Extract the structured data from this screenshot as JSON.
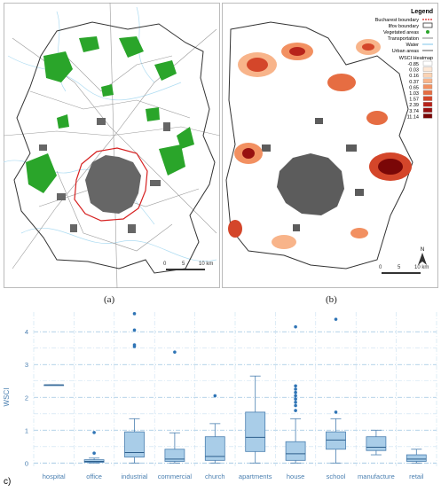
{
  "panel_a": {
    "caption": "(a)",
    "scale": {
      "ticks": [
        "0",
        "5",
        "10 km"
      ]
    }
  },
  "panel_b": {
    "caption": "(b)",
    "scale": {
      "ticks": [
        "0",
        "5",
        "10 km"
      ]
    },
    "north_label": "N",
    "legend": {
      "title": "Legend",
      "items": [
        {
          "label": "Bucharest boundary",
          "color": "#d62020",
          "style": "dashed"
        },
        {
          "label": "Ilfov boundary",
          "color": "#333333",
          "style": "box"
        },
        {
          "label": "Vegetated areas",
          "color": "#2aa52a",
          "style": "dot"
        },
        {
          "label": "Transportation",
          "color": "#888888",
          "style": "line"
        },
        {
          "label": "Water",
          "color": "#7fc4e8",
          "style": "line"
        },
        {
          "label": "Urban areas",
          "color": "#555555",
          "style": "line"
        }
      ],
      "heatmap_title": "WSCI Heatmap",
      "heatmap": [
        {
          "value": "-0.85",
          "color": "#ffffff"
        },
        {
          "value": "0.03",
          "color": "#fde8d6"
        },
        {
          "value": "0.16",
          "color": "#fbd3b4"
        },
        {
          "value": "0.37",
          "color": "#f8b48a"
        },
        {
          "value": "0.65",
          "color": "#f29061"
        },
        {
          "value": "1.03",
          "color": "#e66d42"
        },
        {
          "value": "1.57",
          "color": "#d4462a"
        },
        {
          "value": "2.39",
          "color": "#b8231a"
        },
        {
          "value": "3.74",
          "color": "#981010"
        },
        {
          "value": "11.14",
          "color": "#7a0707"
        }
      ]
    }
  },
  "panel_c": {
    "label": "c)",
    "chart_data": {
      "type": "box",
      "ylabel": "WSCI",
      "ylim": [
        -0.1,
        4.6
      ],
      "yticks": [
        "0",
        "1",
        "2",
        "3",
        "4"
      ],
      "categories": [
        "hospital",
        "office",
        "industrial",
        "commercial",
        "church",
        "apartments",
        "house",
        "school",
        "manufacture",
        "retail"
      ],
      "boxes": [
        {
          "min": 2.38,
          "q1": 2.38,
          "median": 2.38,
          "q3": 2.38,
          "max": 2.38,
          "outliers": []
        },
        {
          "min": 0.0,
          "q1": 0.02,
          "median": 0.05,
          "q3": 0.1,
          "max": 0.15,
          "outliers": [
            0.93,
            0.3
          ]
        },
        {
          "min": 0.0,
          "q1": 0.18,
          "median": 0.32,
          "q3": 0.95,
          "max": 1.35,
          "outliers": [
            3.55,
            3.6,
            4.05,
            4.55
          ]
        },
        {
          "min": 0.0,
          "q1": 0.05,
          "median": 0.12,
          "q3": 0.42,
          "max": 0.92,
          "outliers": [
            3.38
          ]
        },
        {
          "min": 0.0,
          "q1": 0.08,
          "median": 0.2,
          "q3": 0.8,
          "max": 1.2,
          "outliers": [
            2.05
          ]
        },
        {
          "min": 0.0,
          "q1": 0.35,
          "median": 0.78,
          "q3": 1.55,
          "max": 2.65,
          "outliers": []
        },
        {
          "min": 0.0,
          "q1": 0.08,
          "median": 0.28,
          "q3": 0.65,
          "max": 1.35,
          "outliers": [
            1.6,
            1.75,
            1.85,
            1.95,
            2.05,
            2.15,
            2.25,
            2.35,
            4.15
          ]
        },
        {
          "min": 0.0,
          "q1": 0.42,
          "median": 0.7,
          "q3": 0.95,
          "max": 1.35,
          "outliers": [
            1.55,
            4.38
          ]
        },
        {
          "min": 0.25,
          "q1": 0.38,
          "median": 0.48,
          "q3": 0.8,
          "max": 1.0,
          "outliers": []
        },
        {
          "min": 0.0,
          "q1": 0.05,
          "median": 0.12,
          "q3": 0.25,
          "max": 0.42,
          "outliers": []
        }
      ]
    }
  }
}
